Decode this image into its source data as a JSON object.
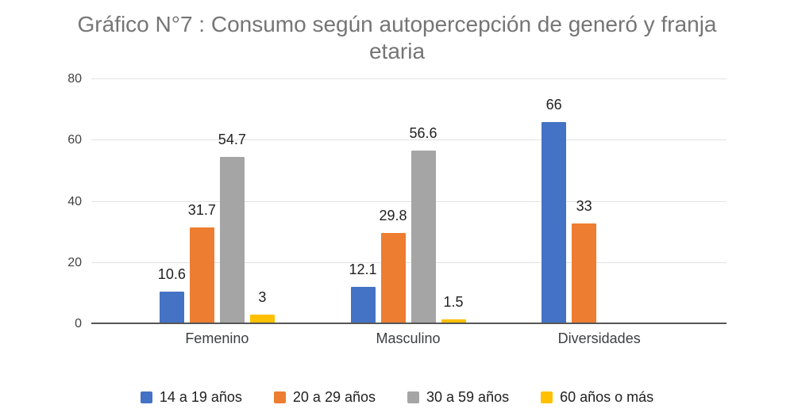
{
  "title": "Gráfico N°7 : Consumo según autopercepción de generó y franja\netaria",
  "chart_data": {
    "type": "bar",
    "title": "Gráfico N°7 : Consumo según autopercepción de generó y franja etaria",
    "categories": [
      "Femenino",
      "Masculino",
      "Diversidades"
    ],
    "series": [
      {
        "name": "14 a 19 años",
        "color": "#4472C4",
        "values": [
          10.6,
          12.1,
          66
        ]
      },
      {
        "name": "20 a 29 años",
        "color": "#ED7D31",
        "values": [
          31.7,
          29.8,
          33
        ]
      },
      {
        "name": "30 a 59 años",
        "color": "#A5A5A5",
        "values": [
          54.7,
          56.6,
          null
        ]
      },
      {
        "name": "60 años o más",
        "color": "#FFC000",
        "values": [
          3,
          1.5,
          null
        ]
      }
    ],
    "xlabel": "",
    "ylabel": "",
    "ylim": [
      0,
      80
    ],
    "yticks": [
      0,
      20,
      40,
      60,
      80
    ],
    "grid": true,
    "legend_position": "bottom",
    "title_color": "#757575",
    "axis_text_color": "#424242",
    "value_label_color": "#212121"
  }
}
